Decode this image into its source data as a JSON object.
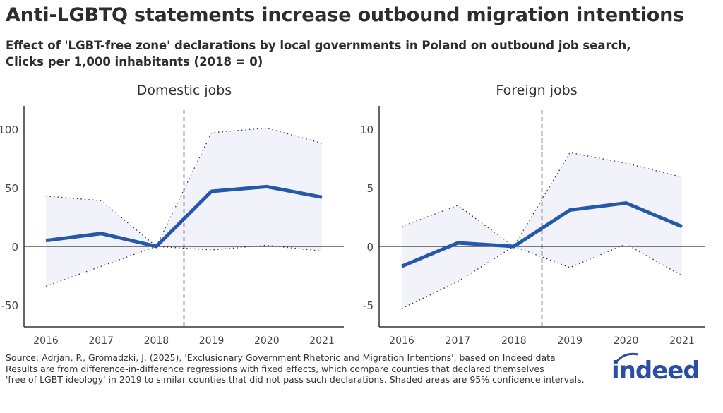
{
  "title": "Anti-LGBTQ statements increase outbound migration intentions",
  "subtitle_line1": "Effect of 'LGBT-free zone' declarations by local governments in Poland on outbound job search,",
  "subtitle_line2": "Clicks per 1,000 inhabitants (2018 = 0)",
  "chart_data": [
    {
      "type": "line",
      "title": "Domestic jobs",
      "categories": [
        "2016",
        "2017",
        "2018",
        "2019",
        "2020",
        "2021"
      ],
      "x": [
        2016,
        2017,
        2018,
        2019,
        2020,
        2021
      ],
      "series": [
        {
          "values": [
            5,
            11,
            0,
            47,
            51,
            42
          ]
        }
      ],
      "ci_upper": [
        43,
        39,
        0,
        97,
        101,
        88
      ],
      "ci_lower": [
        -34,
        -17,
        0,
        -3,
        1,
        -4
      ],
      "ylim": [
        -68,
        120
      ],
      "yticks": [
        -50,
        0,
        50,
        100
      ],
      "ytick_labels": [
        "-50",
        "0",
        "50",
        "100"
      ],
      "vline_x": 2018.5,
      "grid": false,
      "colors": {
        "line": "#2458a8",
        "band": "#f2f3fa"
      }
    },
    {
      "type": "line",
      "title": "Foreign jobs",
      "categories": [
        "2016",
        "2017",
        "2018",
        "2019",
        "2020",
        "2021"
      ],
      "x": [
        2016,
        2017,
        2018,
        2019,
        2020,
        2021
      ],
      "series": [
        {
          "values": [
            -1.7,
            0.3,
            0,
            3.1,
            3.7,
            1.7
          ]
        }
      ],
      "ci_upper": [
        1.7,
        3.5,
        0,
        8.0,
        7.1,
        5.9
      ],
      "ci_lower": [
        -5.3,
        -3.0,
        0,
        -1.8,
        0.2,
        -2.5
      ],
      "ylim": [
        -6.8,
        12
      ],
      "yticks": [
        -5,
        0,
        5,
        10
      ],
      "ytick_labels": [
        "-5",
        "0",
        "5",
        "10"
      ],
      "vline_x": 2018.5,
      "grid": false,
      "colors": {
        "line": "#2458a8",
        "band": "#f2f3fa"
      }
    }
  ],
  "notes": [
    "Source: Adrjan, P., Gromadzki, J. (2025), 'Exclusionary Government Rhetoric and Migration Intentions', based on Indeed data",
    "Results are from difference-in-difference regressions with fixed effects, which compare counties that declared themselves",
    "'free of LGBT ideology' in 2019 to similar counties that did not pass such declarations. Shaded areas are 95% confidence intervals."
  ],
  "logo": {
    "text": "indeed",
    "color": "#2a4ea3"
  }
}
